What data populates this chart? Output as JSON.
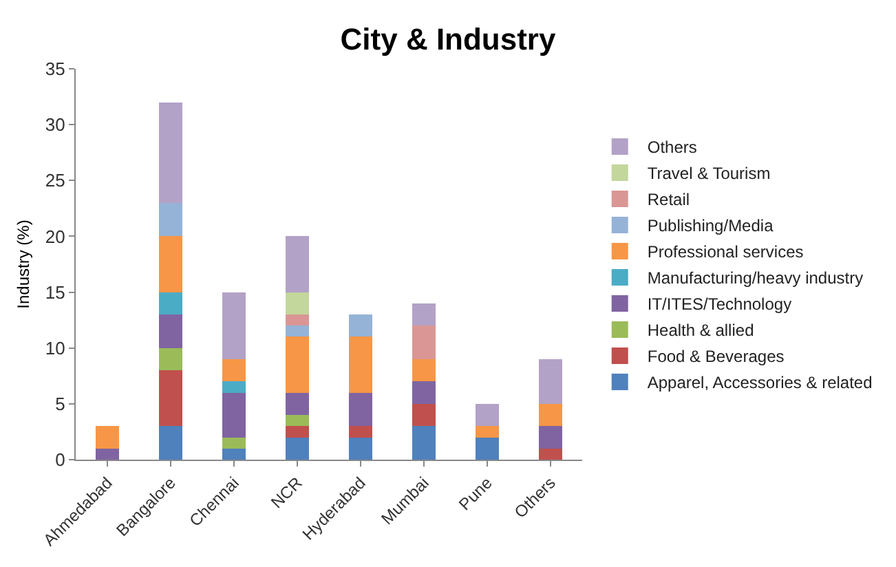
{
  "chart_data": {
    "type": "bar",
    "title": "City & Industry",
    "ylabel": "Industry (%)",
    "stacked": true,
    "legend": "right",
    "grid": false,
    "categories": [
      "Ahmedabad",
      "Bangalore",
      "Chennai",
      "NCR",
      "Hyderabad",
      "Mumbai",
      "Pune",
      "Others"
    ],
    "ylim": [
      0,
      35
    ],
    "yticks": [
      0,
      5,
      10,
      15,
      20,
      25,
      30,
      35
    ],
    "series": [
      {
        "name": "Apparel, Accessories & related",
        "color": "#4f81bd",
        "values": [
          0,
          3,
          1,
          2,
          2,
          3,
          2,
          0
        ]
      },
      {
        "name": "Food & Beverages",
        "color": "#c0504d",
        "values": [
          0,
          5,
          0,
          1,
          1,
          2,
          0,
          1
        ]
      },
      {
        "name": "Health & allied",
        "color": "#9bbb59",
        "values": [
          0,
          2,
          1,
          1,
          0,
          0,
          0,
          0
        ]
      },
      {
        "name": "IT/ITES/Technology",
        "color": "#8064a2",
        "values": [
          1,
          3,
          4,
          2,
          3,
          2,
          0,
          2
        ]
      },
      {
        "name": "Manufacturing/heavy industry",
        "color": "#4bacc6",
        "values": [
          0,
          2,
          1,
          0,
          0,
          0,
          0,
          0
        ]
      },
      {
        "name": "Professional services",
        "color": "#f79646",
        "values": [
          2,
          5,
          2,
          5,
          5,
          2,
          1,
          2
        ]
      },
      {
        "name": "Publishing/Media",
        "color": "#95b3d7",
        "values": [
          0,
          3,
          0,
          1,
          2,
          0,
          0,
          0
        ]
      },
      {
        "name": "Retail",
        "color": "#d99694",
        "values": [
          0,
          0,
          0,
          1,
          0,
          3,
          0,
          0
        ]
      },
      {
        "name": "Travel & Tourism",
        "color": "#c3d69b",
        "values": [
          0,
          0,
          0,
          2,
          0,
          0,
          0,
          0
        ]
      },
      {
        "name": "Others",
        "color": "#b3a2c7",
        "values": [
          0,
          9,
          6,
          5,
          0,
          2,
          2,
          4
        ]
      }
    ]
  }
}
